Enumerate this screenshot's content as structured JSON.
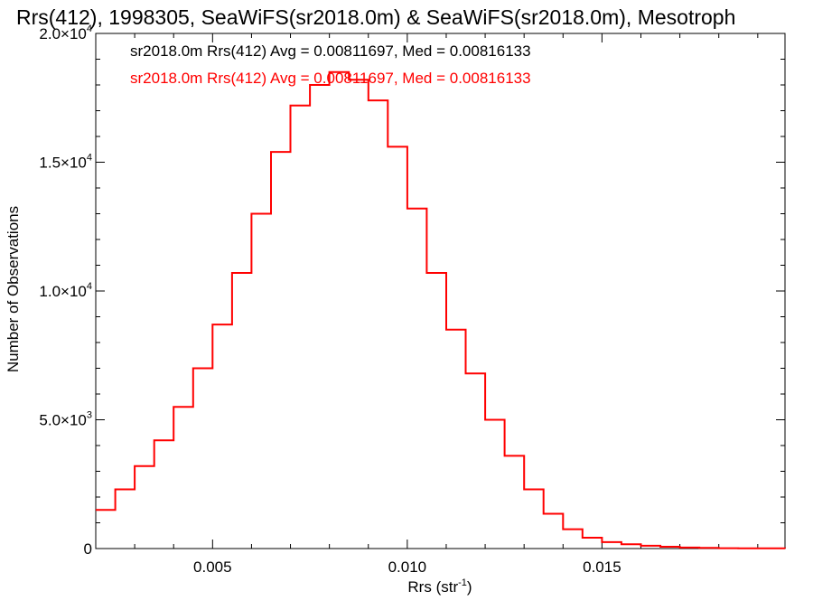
{
  "chart_data": {
    "type": "line",
    "title": "Rrs(412), 1998305, SeaWiFS(sr2018.0m) & SeaWiFS(sr2018.0m), Mesotroph",
    "xlabel": "Rrs (str",
    "xlabel_sup": "-1",
    "xlabel_suffix": ")",
    "ylabel": "Number of Observations",
    "xlim": [
      0.002,
      0.0197
    ],
    "ylim": [
      0,
      20000
    ],
    "xticks": [
      {
        "value": 0.005,
        "label": "0.005"
      },
      {
        "value": 0.01,
        "label": "0.010"
      },
      {
        "value": 0.015,
        "label": "0.015"
      }
    ],
    "yticks": [
      {
        "value": 0,
        "base": "0",
        "exp": ""
      },
      {
        "value": 5000,
        "base": "5.0×10",
        "exp": "3"
      },
      {
        "value": 10000,
        "base": "1.0×10",
        "exp": "4"
      },
      {
        "value": 15000,
        "base": "1.5×10",
        "exp": "4"
      },
      {
        "value": 20000,
        "base": "2.0×10",
        "exp": "4"
      }
    ],
    "grid": false,
    "legend_position": "top-left",
    "annotations": [
      {
        "text": "sr2018.0m Rrs(412) Avg = 0.00811697, Med = 0.00816133",
        "color": "#000000"
      },
      {
        "text": "sr2018.0m Rrs(412) Avg = 0.00811697, Med = 0.00816133",
        "color": "#ff0000"
      }
    ],
    "series": [
      {
        "color": "#ff0000",
        "x": [
          0.002,
          0.0025,
          0.003,
          0.0035,
          0.004,
          0.0045,
          0.005,
          0.0055,
          0.006,
          0.0065,
          0.007,
          0.0075,
          0.008,
          0.0085,
          0.009,
          0.0095,
          0.01,
          0.0105,
          0.011,
          0.0115,
          0.012,
          0.0125,
          0.013,
          0.0135,
          0.014,
          0.0145,
          0.015,
          0.0155,
          0.016,
          0.0165,
          0.017,
          0.0175,
          0.018,
          0.0185,
          0.019,
          0.0197
        ],
        "y": [
          1500,
          2300,
          3200,
          4200,
          5500,
          7000,
          8700,
          10700,
          13000,
          15400,
          17200,
          18000,
          18500,
          18200,
          17400,
          15600,
          13200,
          10700,
          8500,
          6800,
          5000,
          3600,
          2300,
          1350,
          750,
          420,
          250,
          170,
          110,
          70,
          40,
          25,
          15,
          10,
          8,
          5
        ]
      }
    ]
  }
}
